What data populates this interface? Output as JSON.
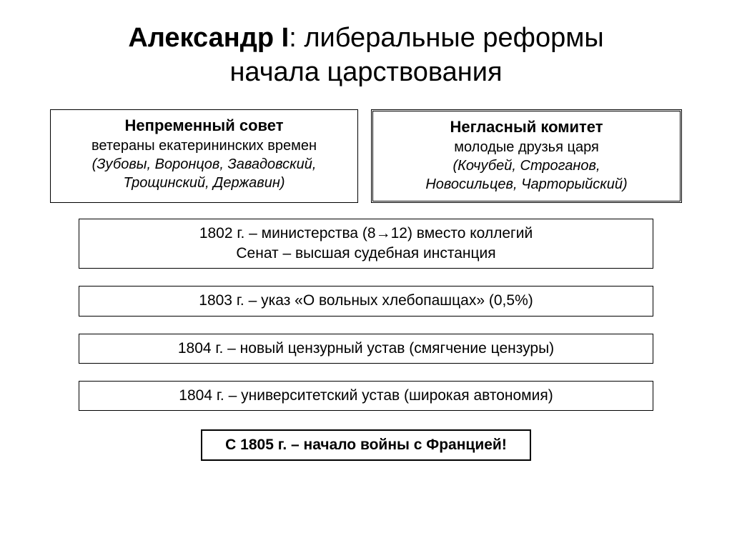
{
  "colors": {
    "background": "#ffffff",
    "border": "#000000",
    "text": "#000000"
  },
  "title": {
    "bold": "Александр I",
    "light1": ": либеральные реформы",
    "light2": "начала царствования",
    "fontsize": 38
  },
  "left_box": {
    "header": "Непременный совет",
    "sub": "ветераны екатерининских времен",
    "names1": "(Зубовы, Воронцов, Завадовский,",
    "names2": "Трощинский, Державин)"
  },
  "right_box": {
    "header": "Негласный комитет",
    "sub": "молодые друзья царя",
    "names1": "(Кочубей, Строганов,",
    "names2": "Новосильцев, Чарторыйский)"
  },
  "events": [
    {
      "line1": "1802 г. – министерства (8→12) вместо коллегий",
      "line2": "Сенат – высшая судебная инстанция"
    },
    {
      "line1": "1803 г. – указ «О вольных хлебопашцах» (0,5%)",
      "line2": ""
    },
    {
      "line1": "1804 г. – новый цензурный устав (смягчение цензуры)",
      "line2": ""
    },
    {
      "line1": "1804 г. – университетский устав (широкая автономия)",
      "line2": ""
    }
  ],
  "final": "С 1805 г. – начало войны с Францией!"
}
